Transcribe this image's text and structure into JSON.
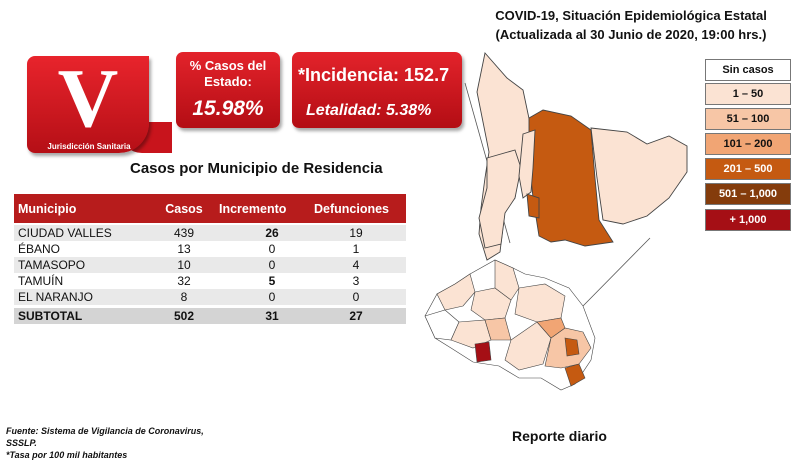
{
  "logo": {
    "letter": "V",
    "subtitle": "Jurisdicción Sanitaria"
  },
  "state_cases": {
    "label": "% Casos del Estado:",
    "value": "15.98%"
  },
  "incidence": {
    "label": "*Incidencia: 152.7",
    "lethality": "Letalidad: 5.38%"
  },
  "table": {
    "title": "Casos por Municipio  de Residencia",
    "headers": [
      "Municipio",
      "Casos",
      "Incremento",
      "Defunciones"
    ],
    "rows": [
      {
        "municipio": "CIUDAD VALLES",
        "casos": "439",
        "incremento": "26",
        "defunciones": "19"
      },
      {
        "municipio": "ÉBANO",
        "casos": "13",
        "incremento": "0",
        "defunciones": "1"
      },
      {
        "municipio": "TAMASOPO",
        "casos": "10",
        "incremento": "0",
        "defunciones": "4"
      },
      {
        "municipio": "TAMUÍN",
        "casos": "32",
        "incremento": "5",
        "defunciones": "3"
      },
      {
        "municipio": "EL NARANJO",
        "casos": "8",
        "incremento": "0",
        "defunciones": "0"
      }
    ],
    "subtotal": {
      "municipio": "SUBTOTAL",
      "casos": "502",
      "incremento": "31",
      "defunciones": "27"
    }
  },
  "header": {
    "line1": "COVID-19, Situación Epidemiológica Estatal",
    "line2": "(Actualizada al 30 Junio de 2020, 19:00 hrs.)"
  },
  "legend": [
    {
      "label": "Sin casos",
      "color": "#ffffff",
      "text": "#111111"
    },
    {
      "label": "1 – 50",
      "color": "#fbe3d3",
      "text": "#111111"
    },
    {
      "label": "51 – 100",
      "color": "#f7c6a6",
      "text": "#111111"
    },
    {
      "label": "101 – 200",
      "color": "#f1a574",
      "text": "#111111"
    },
    {
      "label": "201 – 500",
      "color": "#c55a11",
      "text": "#ffffff"
    },
    {
      "label": "501 – 1,000",
      "color": "#843c0c",
      "text": "#ffffff"
    },
    {
      "label": "+ 1,000",
      "color": "#a50f15",
      "text": "#ffffff"
    }
  ],
  "footer": {
    "source1": "Fuente: Sistema de Vigilancia de Coronavirus,",
    "source2": "SSSLP.",
    "note": "*Tasa por 100 mil habitantes",
    "report": "Reporte diario"
  },
  "colors": {
    "accent": "#b71c1c",
    "map_light": "#fbe3d3",
    "map_mid": "#c55a11"
  }
}
